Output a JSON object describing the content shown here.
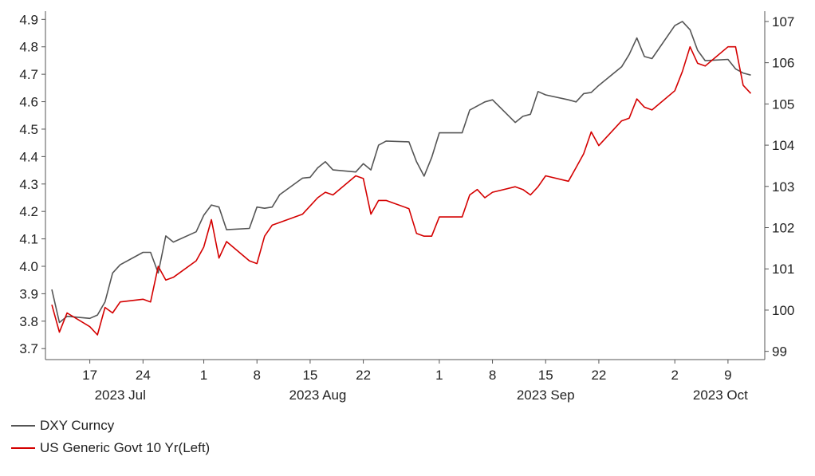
{
  "chart_data": {
    "type": "line",
    "left_axis": {
      "ylim": [
        3.66,
        4.93
      ],
      "ticks": [
        "3.7",
        "3.8",
        "3.9",
        "4.0",
        "4.1",
        "4.2",
        "4.3",
        "4.4",
        "4.5",
        "4.6",
        "4.7",
        "4.8",
        "4.9"
      ]
    },
    "right_axis": {
      "ylim": [
        98.8,
        107.25
      ],
      "ticks": [
        "99",
        "100",
        "101",
        "102",
        "103",
        "104",
        "105",
        "106",
        "107"
      ]
    },
    "x_range": [
      "2023-07-12",
      "2023-10-13"
    ],
    "x_ticks": [
      {
        "date": "2023-07-17",
        "label": "17"
      },
      {
        "date": "2023-07-24",
        "label": "24"
      },
      {
        "date": "2023-08-01",
        "label": "1"
      },
      {
        "date": "2023-08-08",
        "label": "8"
      },
      {
        "date": "2023-08-15",
        "label": "15"
      },
      {
        "date": "2023-08-22",
        "label": "22"
      },
      {
        "date": "2023-09-01",
        "label": "1"
      },
      {
        "date": "2023-09-08",
        "label": "8"
      },
      {
        "date": "2023-09-15",
        "label": "15"
      },
      {
        "date": "2023-09-22",
        "label": "22"
      },
      {
        "date": "2023-10-02",
        "label": "2"
      },
      {
        "date": "2023-10-09",
        "label": "9"
      }
    ],
    "month_labels": [
      {
        "date": "2023-07-21",
        "label": "2023 Jul"
      },
      {
        "date": "2023-08-16",
        "label": "2023 Aug"
      },
      {
        "date": "2023-09-15",
        "label": "2023 Sep"
      },
      {
        "date": "2023-10-08",
        "label": "2023 Oct"
      }
    ],
    "series": [
      {
        "name": "DXY Curncy",
        "axis": "right",
        "color": "#555555",
        "x": [
          "2023-07-12",
          "2023-07-13",
          "2023-07-14",
          "2023-07-17",
          "2023-07-18",
          "2023-07-19",
          "2023-07-20",
          "2023-07-21",
          "2023-07-24",
          "2023-07-25",
          "2023-07-26",
          "2023-07-27",
          "2023-07-28",
          "2023-07-31",
          "2023-08-01",
          "2023-08-02",
          "2023-08-03",
          "2023-08-04",
          "2023-08-07",
          "2023-08-08",
          "2023-08-09",
          "2023-08-10",
          "2023-08-11",
          "2023-08-14",
          "2023-08-15",
          "2023-08-16",
          "2023-08-17",
          "2023-08-18",
          "2023-08-21",
          "2023-08-22",
          "2023-08-23",
          "2023-08-24",
          "2023-08-25",
          "2023-08-28",
          "2023-08-29",
          "2023-08-30",
          "2023-08-31",
          "2023-09-01",
          "2023-09-04",
          "2023-09-05",
          "2023-09-06",
          "2023-09-07",
          "2023-09-08",
          "2023-09-11",
          "2023-09-12",
          "2023-09-13",
          "2023-09-14",
          "2023-09-15",
          "2023-09-18",
          "2023-09-19",
          "2023-09-20",
          "2023-09-21",
          "2023-09-22",
          "2023-09-25",
          "2023-09-26",
          "2023-09-27",
          "2023-09-28",
          "2023-09-29",
          "2023-10-02",
          "2023-10-03",
          "2023-10-04",
          "2023-10-05",
          "2023-10-06",
          "2023-10-09",
          "2023-10-10",
          "2023-10-11",
          "2023-10-12"
        ],
        "values": [
          100.5,
          99.7,
          99.85,
          99.8,
          99.88,
          100.2,
          100.9,
          101.1,
          101.4,
          101.4,
          100.9,
          101.8,
          101.65,
          101.9,
          102.3,
          102.55,
          102.5,
          101.95,
          101.98,
          102.5,
          102.47,
          102.5,
          102.8,
          103.2,
          103.22,
          103.45,
          103.6,
          103.4,
          103.35,
          103.55,
          103.4,
          104.0,
          104.1,
          104.08,
          103.6,
          103.25,
          103.7,
          104.3,
          104.3,
          104.85,
          104.95,
          105.05,
          105.1,
          104.55,
          104.7,
          104.75,
          105.3,
          105.22,
          105.1,
          105.05,
          105.25,
          105.28,
          105.45,
          105.9,
          106.2,
          106.6,
          106.15,
          106.1,
          106.9,
          107.0,
          106.8,
          106.3,
          106.05,
          106.08,
          105.85,
          105.75,
          105.7
        ]
      },
      {
        "name": "US Generic Govt 10 Yr(Left)",
        "axis": "left",
        "color": "#d40000",
        "x": [
          "2023-07-12",
          "2023-07-13",
          "2023-07-14",
          "2023-07-17",
          "2023-07-18",
          "2023-07-19",
          "2023-07-20",
          "2023-07-21",
          "2023-07-24",
          "2023-07-25",
          "2023-07-26",
          "2023-07-27",
          "2023-07-28",
          "2023-07-31",
          "2023-08-01",
          "2023-08-02",
          "2023-08-03",
          "2023-08-04",
          "2023-08-07",
          "2023-08-08",
          "2023-08-09",
          "2023-08-10",
          "2023-08-11",
          "2023-08-14",
          "2023-08-15",
          "2023-08-16",
          "2023-08-17",
          "2023-08-18",
          "2023-08-21",
          "2023-08-22",
          "2023-08-23",
          "2023-08-24",
          "2023-08-25",
          "2023-08-28",
          "2023-08-29",
          "2023-08-30",
          "2023-08-31",
          "2023-09-01",
          "2023-09-04",
          "2023-09-05",
          "2023-09-06",
          "2023-09-07",
          "2023-09-08",
          "2023-09-11",
          "2023-09-12",
          "2023-09-13",
          "2023-09-14",
          "2023-09-15",
          "2023-09-18",
          "2023-09-19",
          "2023-09-20",
          "2023-09-21",
          "2023-09-22",
          "2023-09-25",
          "2023-09-26",
          "2023-09-27",
          "2023-09-28",
          "2023-09-29",
          "2023-10-02",
          "2023-10-03",
          "2023-10-04",
          "2023-10-05",
          "2023-10-06",
          "2023-10-09",
          "2023-10-10",
          "2023-10-11",
          "2023-10-12"
        ],
        "values": [
          3.86,
          3.76,
          3.83,
          3.78,
          3.75,
          3.85,
          3.83,
          3.87,
          3.88,
          3.87,
          4.0,
          3.95,
          3.96,
          4.02,
          4.07,
          4.17,
          4.03,
          4.09,
          4.02,
          4.01,
          4.11,
          4.15,
          4.16,
          4.19,
          4.22,
          4.25,
          4.27,
          4.26,
          4.33,
          4.32,
          4.19,
          4.24,
          4.24,
          4.21,
          4.12,
          4.11,
          4.11,
          4.18,
          4.18,
          4.26,
          4.28,
          4.25,
          4.27,
          4.29,
          4.28,
          4.26,
          4.29,
          4.33,
          4.31,
          4.36,
          4.41,
          4.49,
          4.44,
          4.53,
          4.54,
          4.61,
          4.58,
          4.57,
          4.64,
          4.71,
          4.8,
          4.74,
          4.73,
          4.8,
          4.8,
          4.66,
          4.63
        ]
      }
    ]
  }
}
